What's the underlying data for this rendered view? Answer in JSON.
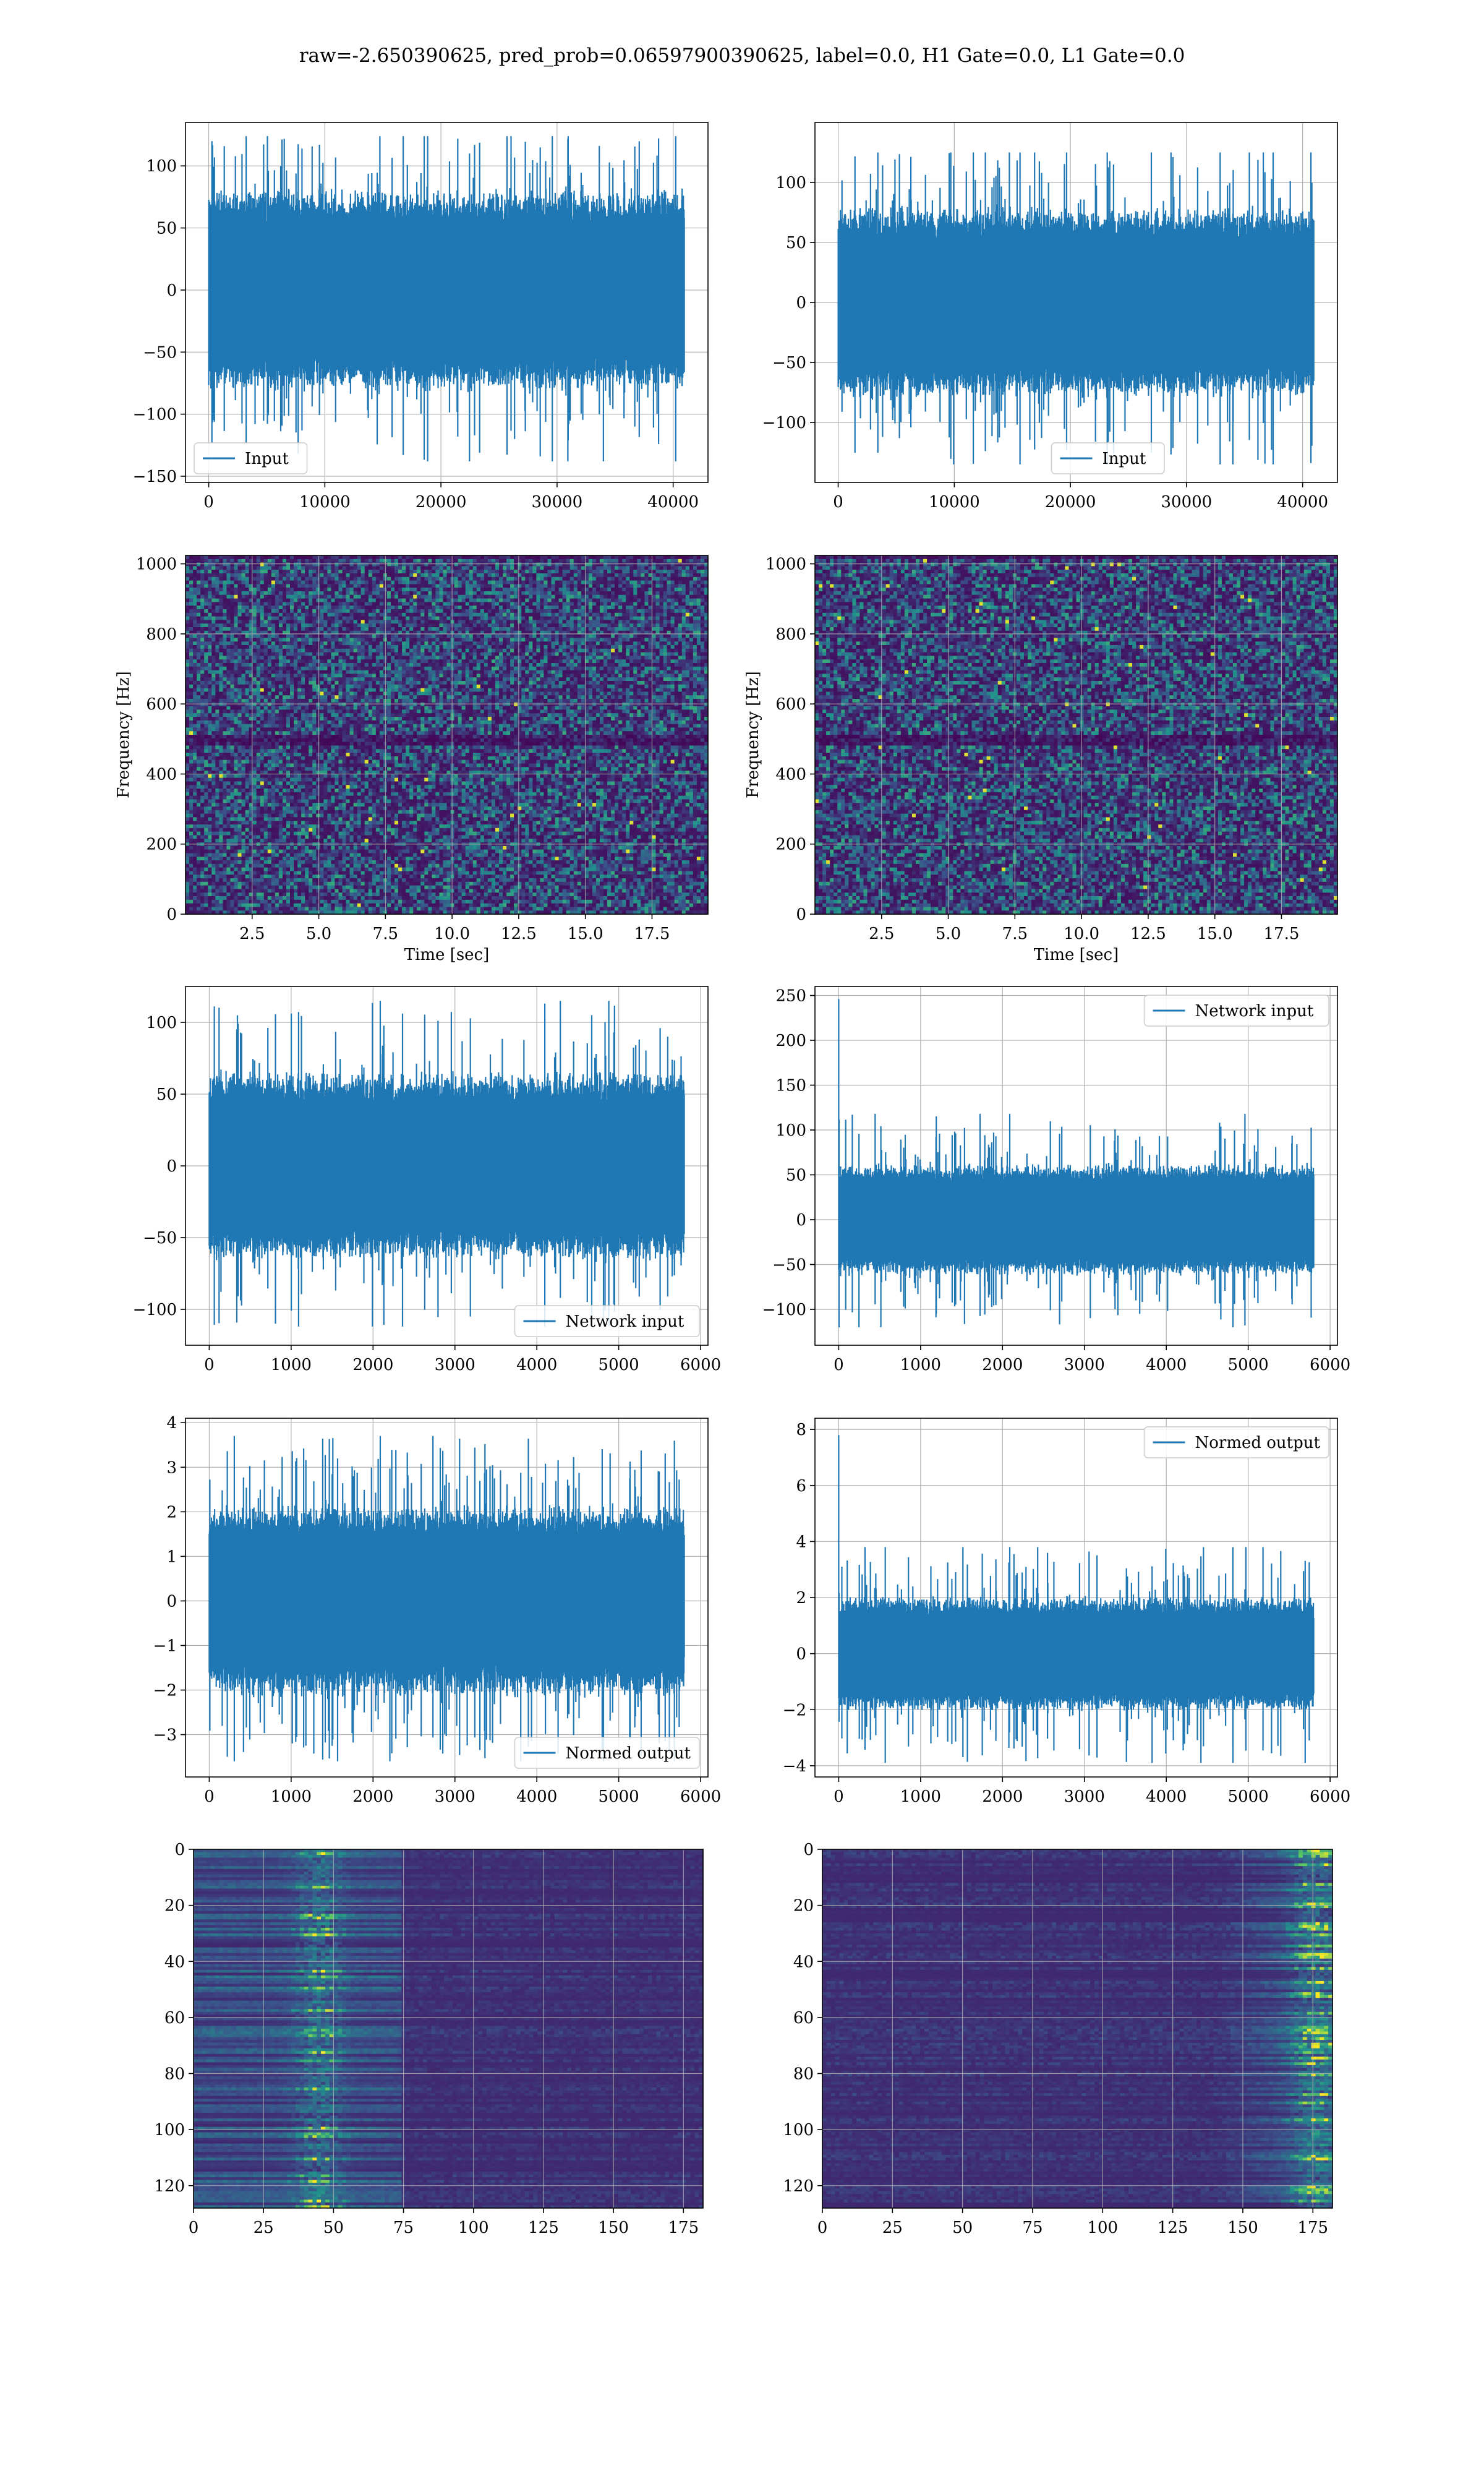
{
  "suptitle": "raw=-2.650390625, pred_prob=0.06597900390625, label=0.0, H1 Gate=0.0, L1 Gate=0.0",
  "colors": {
    "series": "#1f77b4",
    "grid": "#b0b0b0",
    "viridis_low": "#440154",
    "viridis_mid": "#21918c",
    "viridis_high": "#fde725"
  },
  "chart_data": [
    {
      "type": "line",
      "detector": "left",
      "row": 1,
      "legend": "Input",
      "legend_loc": "lower left",
      "x_range": [
        0,
        40960
      ],
      "xticks": [
        0,
        10000,
        20000,
        30000,
        40000
      ],
      "yticks": [
        -150,
        -100,
        -50,
        0,
        50,
        100
      ],
      "xlim": [
        -2000,
        43000
      ],
      "ylim": [
        -155,
        135
      ],
      "envelope": {
        "typical": 72,
        "peak_max": 124,
        "peak_min": -138
      },
      "grid": true
    },
    {
      "type": "line",
      "detector": "right",
      "row": 1,
      "legend": "Input",
      "legend_loc": "lower center",
      "x_range": [
        0,
        40960
      ],
      "xticks": [
        0,
        10000,
        20000,
        30000,
        40000
      ],
      "yticks": [
        -100,
        -50,
        0,
        50,
        100
      ],
      "xlim": [
        -2000,
        43000
      ],
      "ylim": [
        -150,
        150
      ],
      "envelope": {
        "typical": 70,
        "peak_max": 125,
        "peak_min": -135
      },
      "grid": true
    },
    {
      "type": "heatmap",
      "detector": "left",
      "row": 2,
      "kind": "spectrogram",
      "xlabel": "Time [sec]",
      "ylabel": "Frequency [Hz]",
      "xticks": [
        "2.5",
        "5.0",
        "7.5",
        "10.0",
        "12.5",
        "15.0",
        "17.5"
      ],
      "yticks": [
        "0",
        "200",
        "400",
        "600",
        "800",
        "1000"
      ],
      "xlim": [
        0,
        19.6
      ],
      "ylim": [
        0,
        1024
      ],
      "colormap": "viridis",
      "grid": true
    },
    {
      "type": "heatmap",
      "detector": "right",
      "row": 2,
      "kind": "spectrogram",
      "xlabel": "Time [sec]",
      "ylabel": "Frequency [Hz]",
      "xticks": [
        "2.5",
        "5.0",
        "7.5",
        "10.0",
        "12.5",
        "15.0",
        "17.5"
      ],
      "yticks": [
        "0",
        "200",
        "400",
        "600",
        "800",
        "1000"
      ],
      "xlim": [
        0,
        19.6
      ],
      "ylim": [
        0,
        1024
      ],
      "colormap": "viridis",
      "grid": true
    },
    {
      "type": "line",
      "detector": "left",
      "row": 3,
      "legend": "Network input",
      "legend_loc": "lower right",
      "x_range": [
        0,
        5800
      ],
      "xticks": [
        0,
        1000,
        2000,
        3000,
        4000,
        5000,
        6000
      ],
      "yticks": [
        -100,
        -50,
        0,
        50,
        100
      ],
      "xlim": [
        -290,
        6090
      ],
      "ylim": [
        -125,
        125
      ],
      "envelope": {
        "typical": 58,
        "peak_max": 115,
        "peak_min": -112
      },
      "grid": true
    },
    {
      "type": "line",
      "detector": "right",
      "row": 3,
      "legend": "Network input",
      "legend_loc": "upper right",
      "x_range": [
        0,
        5800
      ],
      "xticks": [
        0,
        1000,
        2000,
        3000,
        4000,
        5000,
        6000
      ],
      "yticks": [
        -100,
        -50,
        0,
        50,
        100,
        150,
        200,
        250
      ],
      "xlim": [
        -290,
        6090
      ],
      "ylim": [
        -140,
        260
      ],
      "envelope": {
        "typical": 55,
        "peak_max": 118,
        "peak_min": -120
      },
      "spike": {
        "x": 0,
        "y": 246
      },
      "grid": true
    },
    {
      "type": "line",
      "detector": "left",
      "row": 4,
      "legend": "Normed output",
      "legend_loc": "lower right",
      "x_range": [
        0,
        5800
      ],
      "xticks": [
        0,
        1000,
        2000,
        3000,
        4000,
        5000,
        6000
      ],
      "yticks": [
        -3,
        -2,
        -1,
        0,
        1,
        2,
        3,
        4
      ],
      "xlim": [
        -290,
        6090
      ],
      "ylim": [
        -3.95,
        4.1
      ],
      "envelope": {
        "typical": 1.9,
        "peak_max": 3.7,
        "peak_min": -3.6
      },
      "grid": true
    },
    {
      "type": "line",
      "detector": "right",
      "row": 4,
      "legend": "Normed output",
      "legend_loc": "upper right",
      "x_range": [
        0,
        5800
      ],
      "xticks": [
        0,
        1000,
        2000,
        3000,
        4000,
        5000,
        6000
      ],
      "yticks": [
        -4,
        -2,
        0,
        2,
        4,
        6,
        8
      ],
      "xlim": [
        -290,
        6090
      ],
      "ylim": [
        -4.4,
        8.4
      ],
      "envelope": {
        "typical": 1.8,
        "peak_max": 3.8,
        "peak_min": -3.9
      },
      "spike": {
        "x": 0,
        "y": 7.8
      },
      "grid": true
    },
    {
      "type": "heatmap",
      "detector": "left",
      "row": 5,
      "kind": "network output",
      "xticks": [
        "0",
        "25",
        "50",
        "75",
        "100",
        "125",
        "150",
        "175"
      ],
      "yticks": [
        "0",
        "20",
        "40",
        "60",
        "80",
        "100",
        "120"
      ],
      "xlim": [
        0,
        182
      ],
      "ylim": [
        128,
        0
      ],
      "colormap": "viridis",
      "grid": true,
      "bright_band_x": 45
    },
    {
      "type": "heatmap",
      "detector": "right",
      "row": 5,
      "kind": "network output",
      "xticks": [
        "0",
        "25",
        "50",
        "75",
        "100",
        "125",
        "150",
        "175"
      ],
      "yticks": [
        "0",
        "20",
        "40",
        "60",
        "80",
        "100",
        "120"
      ],
      "xlim": [
        0,
        182
      ],
      "ylim": [
        128,
        0
      ],
      "colormap": "viridis",
      "grid": true,
      "bright_band_x": 176
    }
  ]
}
